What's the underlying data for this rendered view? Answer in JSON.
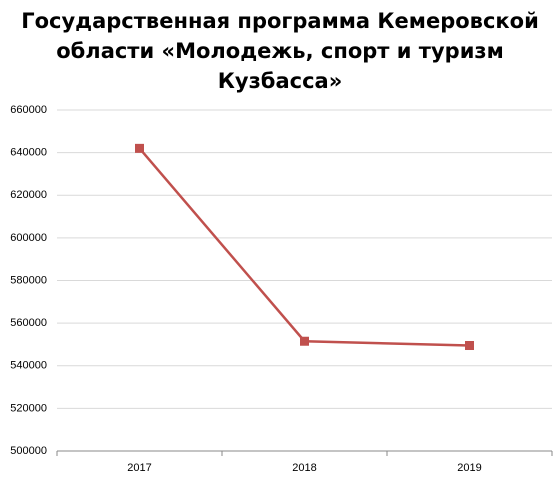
{
  "chart_data": {
    "type": "line",
    "title": [
      "Государственная программа Кемеровской",
      "области «Молодежь, спорт и туризм",
      "Кузбасса»"
    ],
    "categories": [
      "2017",
      "2018",
      "2019"
    ],
    "series": [
      {
        "color": "#c0504d",
        "values": [
          642000,
          551500,
          549500
        ]
      }
    ],
    "ylim": [
      500000,
      660000
    ],
    "yticks": [
      500000,
      520000,
      540000,
      560000,
      580000,
      600000,
      620000,
      640000,
      660000
    ],
    "grid": true
  }
}
